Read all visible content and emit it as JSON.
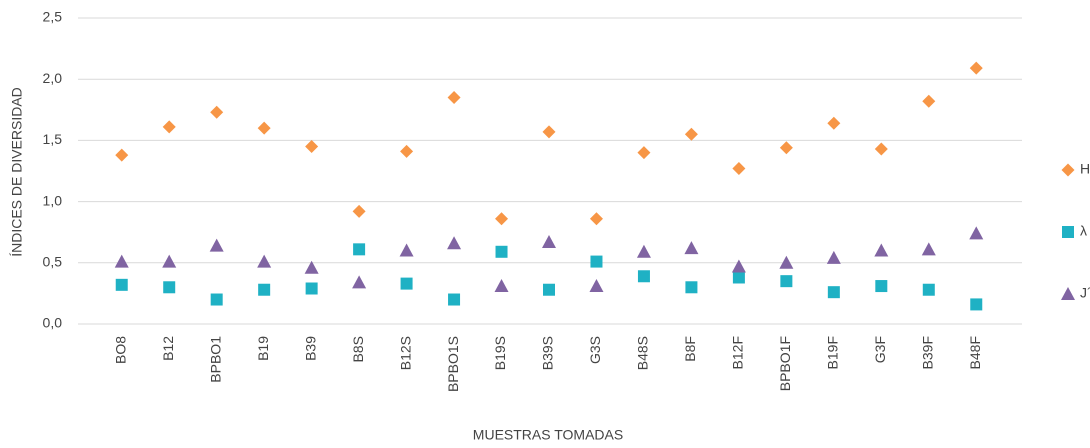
{
  "chart_data": {
    "type": "scatter",
    "x_label": "MUESTRAS TOMADAS",
    "y_label": "ÍNDICES DE DIVERSIDAD",
    "categories": [
      "BO8",
      "B12",
      "BPBO1",
      "B19",
      "B39",
      "B8S",
      "B12S",
      "BPBO1S",
      "B19S",
      "B39S",
      "G3S",
      "B48S",
      "B8F",
      "B12F",
      "BPBO1F",
      "B19F",
      "G3F",
      "B39F",
      "B48F"
    ],
    "series": [
      {
        "name": "H´",
        "color": "#f79646",
        "marker": "diamond",
        "values": [
          1.38,
          1.61,
          1.73,
          1.6,
          1.45,
          0.92,
          1.41,
          1.85,
          0.86,
          1.57,
          0.86,
          1.4,
          1.55,
          1.27,
          1.44,
          1.64,
          1.43,
          1.82,
          2.09
        ]
      },
      {
        "name": "λ",
        "color": "#1fb1c4",
        "marker": "square",
        "values": [
          0.32,
          0.3,
          0.2,
          0.28,
          0.29,
          0.61,
          0.33,
          0.2,
          0.59,
          0.28,
          0.51,
          0.39,
          0.3,
          0.38,
          0.35,
          0.26,
          0.31,
          0.28,
          0.16
        ]
      },
      {
        "name": "J´",
        "color": "#8064a2",
        "marker": "triangle",
        "values": [
          0.51,
          0.51,
          0.64,
          0.51,
          0.46,
          0.34,
          0.6,
          0.66,
          0.31,
          0.67,
          0.31,
          0.59,
          0.62,
          0.47,
          0.5,
          0.54,
          0.6,
          0.61,
          0.74
        ]
      }
    ],
    "ylim": [
      0,
      2.5
    ],
    "yticks": [
      {
        "value": 0,
        "label": "0,0"
      },
      {
        "value": 0.5,
        "label": "0,5"
      },
      {
        "value": 1,
        "label": "1,0"
      },
      {
        "value": 1.5,
        "label": "1,5"
      },
      {
        "value": 2,
        "label": "2,0"
      },
      {
        "value": 2.5,
        "label": "2,5"
      }
    ],
    "grid": true,
    "legend": "right"
  }
}
